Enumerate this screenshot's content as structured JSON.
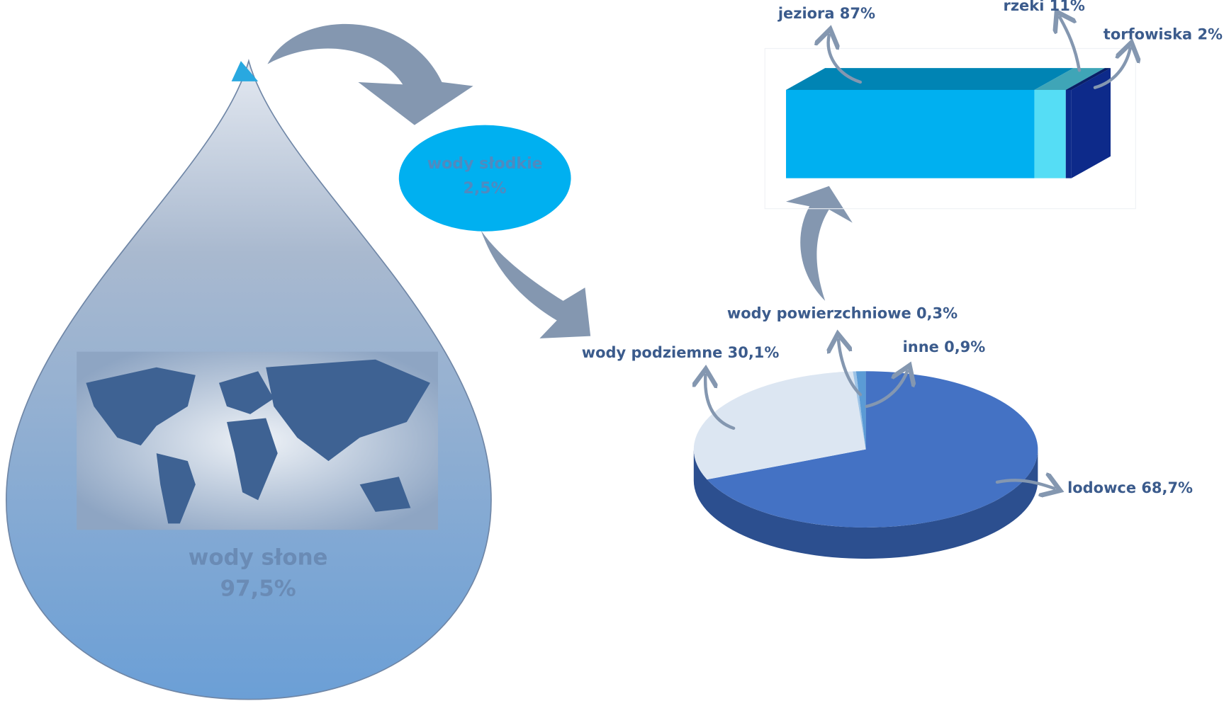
{
  "drop": {
    "name": "wody słone",
    "value_label": "97,5%"
  },
  "fresh": {
    "name": "wody słodkie",
    "value_label": "2,5%"
  },
  "chart_data": [
    {
      "type": "pie",
      "values": [
        68.7,
        30.1,
        0.3,
        0.9
      ],
      "value_labels": [
        "lodowce 68,7%",
        "wody podziemne 30,1%",
        "wody powierzchniowe 0,3%",
        "inne 0,9%"
      ],
      "colors": [
        "#4472c4",
        "#dce6f2",
        "#9dc3e6",
        "#5b9bd5"
      ]
    },
    {
      "type": "stacked-bar",
      "values": [
        87,
        11,
        2
      ],
      "value_labels": [
        "jeziora 87%",
        "rzeki 11%",
        "torfowiska 2%"
      ],
      "colors": [
        "#00b0f0",
        "#55ddf5",
        "#0d2a8a"
      ]
    }
  ]
}
